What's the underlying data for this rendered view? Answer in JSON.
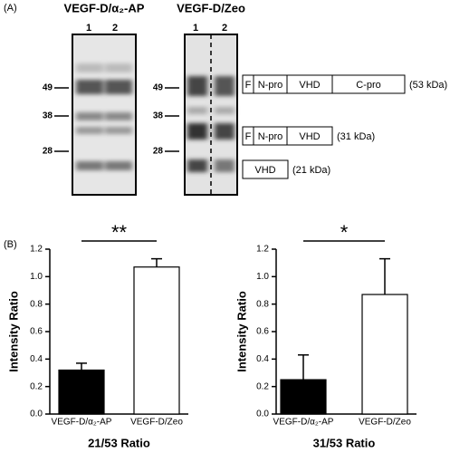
{
  "panel_a": {
    "label": "(A)",
    "blots": [
      {
        "title": "VEGF-D/α₂-AP",
        "lanes": [
          "1",
          "2"
        ],
        "markers": [
          "49",
          "38",
          "28"
        ]
      },
      {
        "title": "VEGF-D/Zeo",
        "lanes": [
          "1",
          "2"
        ],
        "markers": [
          "49",
          "38",
          "28"
        ]
      }
    ],
    "constructs": [
      {
        "segments": [
          "F",
          "N-pro",
          "VHD",
          "C-pro"
        ],
        "size": "(53 kDa)"
      },
      {
        "segments": [
          "F",
          "N-pro",
          "VHD"
        ],
        "size": "(31 kDa)"
      },
      {
        "segments": [
          "VHD"
        ],
        "size": "(21 kDa)"
      }
    ]
  },
  "panel_b": {
    "label": "(B)"
  },
  "chart_data": [
    {
      "type": "bar",
      "y_label": "Intensity Ratio",
      "x_label": "21/53 Ratio",
      "significance": "**",
      "categories": [
        "VEGF-D/α₂-AP",
        "VEGF-D/Zeo"
      ],
      "values": [
        0.32,
        1.07
      ],
      "errors": [
        0.05,
        0.06
      ],
      "colors": [
        "#000000",
        "#ffffff"
      ],
      "ylim": [
        0,
        1.2
      ],
      "yticks": [
        {
          "value": 0,
          "label": "0.0"
        },
        0.2,
        0.4,
        0.6,
        0.8,
        {
          "value": 1,
          "label": "1.0"
        },
        1.2
      ]
    },
    {
      "type": "bar",
      "y_label": "Intensity Ratio",
      "x_label": "31/53 Ratio",
      "significance": "*",
      "categories": [
        "VEGF-D/α₂-AP",
        "VEGF-D/Zeo"
      ],
      "values": [
        0.25,
        0.87
      ],
      "errors": [
        0.18,
        0.26
      ],
      "colors": [
        "#000000",
        "#ffffff"
      ],
      "ylim": [
        0,
        1.2
      ],
      "yticks": [
        {
          "value": 0,
          "label": "0.0"
        },
        0.2,
        0.4,
        0.6,
        0.8,
        {
          "value": 1,
          "label": "1.0"
        },
        1.2
      ]
    }
  ]
}
